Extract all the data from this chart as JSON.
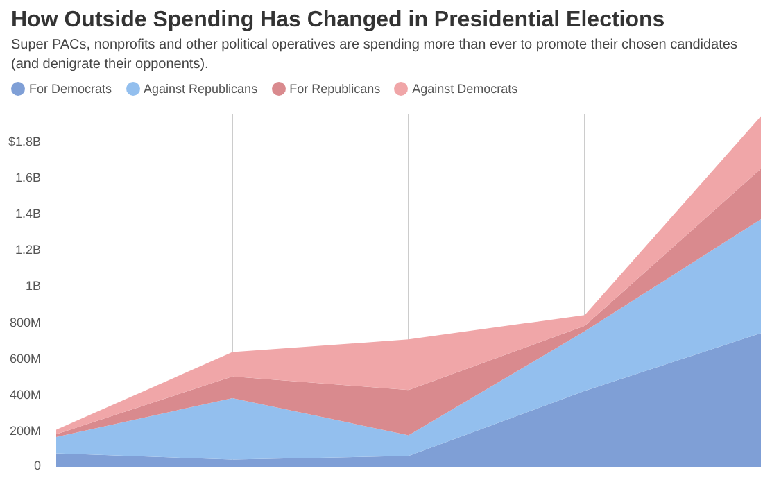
{
  "chart_data": {
    "type": "area",
    "stacked": true,
    "title": "How Outside Spending Has Changed in Presidential Elections",
    "subtitle": "Super PACs, nonprofits and other political operatives are spending more than ever to promote their chosen candidates (and denigrate their opponents).",
    "categories": [
      null,
      null,
      null,
      null,
      null
    ],
    "series": [
      {
        "name": "For Democrats",
        "color": "#7f9fd6",
        "values": [
          75000000,
          40000000,
          60000000,
          420000000,
          740000000
        ]
      },
      {
        "name": "Against Republicans",
        "color": "#93bfee",
        "values": [
          90000000,
          340000000,
          115000000,
          330000000,
          630000000
        ]
      },
      {
        "name": "For Republicans",
        "color": "#d98a8e",
        "values": [
          15000000,
          120000000,
          250000000,
          30000000,
          280000000
        ]
      },
      {
        "name": "Against Democrats",
        "color": "#f0a6a8",
        "values": [
          25000000,
          135000000,
          280000000,
          60000000,
          290000000
        ]
      }
    ],
    "ylim": [
      0,
      1950000000
    ],
    "yticks": [
      0,
      {
        "value": 200000000,
        "label": "200M"
      },
      {
        "value": 400000000,
        "label": "400M"
      },
      {
        "value": 600000000,
        "label": "600M"
      },
      {
        "value": 800000000,
        "label": "800M"
      },
      {
        "value": 1000000000,
        "label": "1B"
      },
      {
        "value": 1200000000,
        "label": "1.2B"
      },
      {
        "value": 1400000000,
        "label": "1.4B"
      },
      {
        "value": 1600000000,
        "label": "1.6B"
      },
      {
        "value": 1800000000,
        "label": "$1.8B"
      }
    ],
    "grid": "x",
    "legend": "top",
    "tick_labels": "y"
  }
}
